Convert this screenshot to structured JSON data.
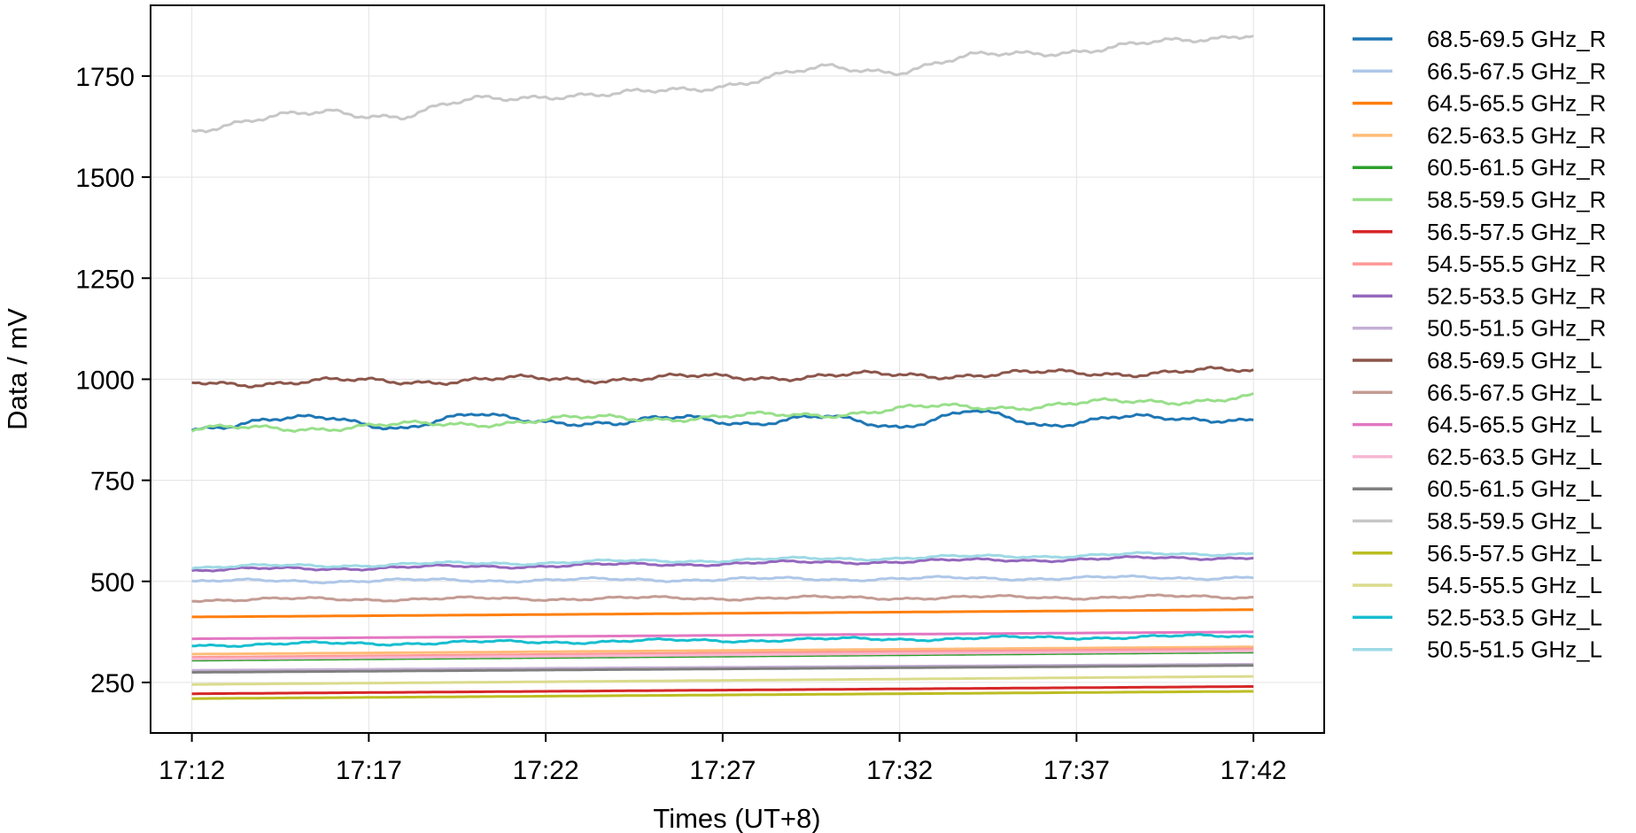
{
  "chart_data": {
    "type": "line",
    "title": "",
    "xlabel": "Times (UT+8)",
    "ylabel": "Data / mV",
    "x_tick_labels": [
      "17:12",
      "17:17",
      "17:22",
      "17:27",
      "17:32",
      "17:37",
      "17:42"
    ],
    "x_ticks": [
      "17:12",
      "17:17",
      "17:22",
      "17:27",
      "17:32",
      "17:37",
      "17:42"
    ],
    "xlim": [
      "17:10:50",
      "17:44:00"
    ],
    "y_ticks": [
      250,
      500,
      750,
      1000,
      1250,
      1500,
      1750
    ],
    "ylim": [
      125,
      1925
    ],
    "grid": true,
    "legend_position": "right, outside",
    "series": [
      {
        "name": "68.5-69.5 GHz_R",
        "color": "#1f77b4",
        "style": "wavy",
        "x": [
          "17:12:00",
          "17:14:00",
          "17:16:00",
          "17:18:00",
          "17:20:00",
          "17:22:00",
          "17:24:00",
          "17:26:00",
          "17:28:00",
          "17:30:00",
          "17:32:00",
          "17:34:00",
          "17:36:00",
          "17:38:00",
          "17:40:00",
          "17:42:00"
        ],
        "y": [
          880,
          895,
          905,
          880,
          910,
          900,
          885,
          910,
          890,
          905,
          885,
          920,
          885,
          910,
          895,
          905
        ]
      },
      {
        "name": "66.5-67.5 GHz_R",
        "color": "#aec7e8",
        "style": "wavy",
        "x": [
          "17:12:00",
          "17:42:00"
        ],
        "y": [
          500,
          510
        ]
      },
      {
        "name": "64.5-65.5 GHz_R",
        "color": "#ff7f0e",
        "style": "straight",
        "x": [
          "17:12:00",
          "17:42:00"
        ],
        "y": [
          412,
          430
        ]
      },
      {
        "name": "62.5-63.5 GHz_R",
        "color": "#ffbb78",
        "style": "straight",
        "x": [
          "17:12:00",
          "17:42:00"
        ],
        "y": [
          320,
          338
        ]
      },
      {
        "name": "60.5-61.5 GHz_R",
        "color": "#2ca02c",
        "style": "straight",
        "x": [
          "17:12:00",
          "17:42:00"
        ],
        "y": [
          305,
          325
        ]
      },
      {
        "name": "58.5-59.5 GHz_R",
        "color": "#98df8a",
        "style": "wavy",
        "x": [
          "17:12:00",
          "17:15:00",
          "17:18:00",
          "17:21:00",
          "17:24:00",
          "17:27:00",
          "17:30:00",
          "17:33:00",
          "17:36:00",
          "17:39:00",
          "17:42:00"
        ],
        "y": [
          875,
          880,
          885,
          895,
          905,
          905,
          915,
          930,
          935,
          945,
          955
        ]
      },
      {
        "name": "56.5-57.5 GHz_R",
        "color": "#d62728",
        "style": "straight",
        "x": [
          "17:12:00",
          "17:42:00"
        ],
        "y": [
          222,
          240
        ]
      },
      {
        "name": "54.5-55.5 GHz_R",
        "color": "#ff9896",
        "style": "straight",
        "x": [
          "17:12:00",
          "17:42:00"
        ],
        "y": [
          312,
          333
        ]
      },
      {
        "name": "52.5-53.5 GHz_R",
        "color": "#9467bd",
        "style": "wavy",
        "x": [
          "17:12:00",
          "17:42:00"
        ],
        "y": [
          528,
          560
        ]
      },
      {
        "name": "50.5-51.5 GHz_R",
        "color": "#c5b0d5",
        "style": "straight",
        "x": [
          "17:12:00",
          "17:42:00"
        ],
        "y": [
          280,
          295
        ]
      },
      {
        "name": "68.5-69.5 GHz_L",
        "color": "#8c564b",
        "style": "wavy",
        "x": [
          "17:12:00",
          "17:42:00"
        ],
        "y": [
          990,
          1020
        ]
      },
      {
        "name": "66.5-67.5 GHz_L",
        "color": "#c49c94",
        "style": "wavy",
        "x": [
          "17:12:00",
          "17:42:00"
        ],
        "y": [
          455,
          462
        ]
      },
      {
        "name": "64.5-65.5 GHz_L",
        "color": "#e377c2",
        "style": "straight",
        "x": [
          "17:12:00",
          "17:42:00"
        ],
        "y": [
          358,
          375
        ]
      },
      {
        "name": "62.5-63.5 GHz_L",
        "color": "#f7b6d2",
        "style": "straight",
        "x": [
          "17:12:00",
          "17:42:00"
        ],
        "y": [
          308,
          328
        ]
      },
      {
        "name": "60.5-61.5 GHz_L",
        "color": "#7f7f7f",
        "style": "straight",
        "x": [
          "17:12:00",
          "17:42:00"
        ],
        "y": [
          275,
          292
        ]
      },
      {
        "name": "58.5-59.5 GHz_L",
        "color": "#c7c7c7",
        "style": "wavy",
        "x": [
          "17:12:00",
          "17:14:00",
          "17:16:00",
          "17:18:00",
          "17:20:00",
          "17:22:00",
          "17:24:00",
          "17:26:00",
          "17:28:00",
          "17:30:00",
          "17:32:00",
          "17:34:00",
          "17:36:00",
          "17:38:00",
          "17:40:00",
          "17:42:00"
        ],
        "y": [
          1620,
          1640,
          1665,
          1650,
          1690,
          1705,
          1700,
          1720,
          1740,
          1770,
          1765,
          1795,
          1810,
          1820,
          1835,
          1860
        ]
      },
      {
        "name": "56.5-57.5 GHz_L",
        "color": "#bcbd22",
        "style": "straight",
        "x": [
          "17:12:00",
          "17:42:00"
        ],
        "y": [
          210,
          228
        ]
      },
      {
        "name": "54.5-55.5 GHz_L",
        "color": "#dbdb8d",
        "style": "straight",
        "x": [
          "17:12:00",
          "17:42:00"
        ],
        "y": [
          245,
          265
        ]
      },
      {
        "name": "52.5-53.5 GHz_L",
        "color": "#17becf",
        "style": "wavy",
        "x": [
          "17:12:00",
          "17:42:00"
        ],
        "y": [
          343,
          365
        ]
      },
      {
        "name": "50.5-51.5 GHz_L",
        "color": "#9edae5",
        "style": "wavy",
        "x": [
          "17:12:00",
          "17:42:00"
        ],
        "y": [
          535,
          570
        ]
      }
    ]
  }
}
